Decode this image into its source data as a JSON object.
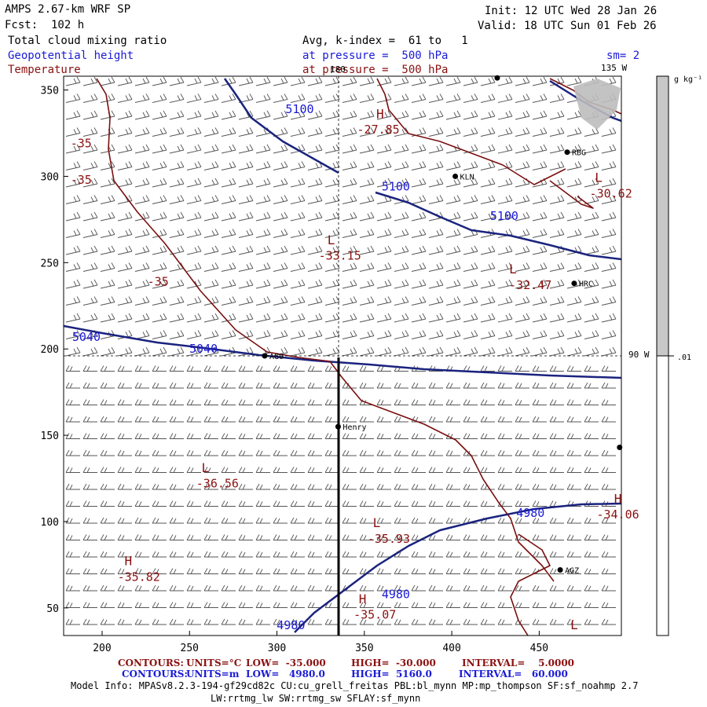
{
  "header": {
    "model_title": "AMPS 2.67-km WRF SP",
    "forecast": "Fcst:  102 h",
    "init": "Init: 12 UTC Wed 28 Jan 26",
    "valid": "Valid: 18 UTC Sun 01 Feb 26",
    "field1": "Total cloud mixing ratio",
    "field1_detail": "Avg, k-index =  61 to   1",
    "field2": "Geopotential height",
    "field2_detail": "at pressure =  500 hPa",
    "field3": "Temperature",
    "field3_detail": "at pressure =  500 hPa",
    "smoothing": "sm= 2",
    "lon_135": "135 W",
    "lon_90": "90 W",
    "lon_180": "180"
  },
  "colorbar": {
    "unit": "g kg⁻¹",
    "tick_value": ".01",
    "color_high": "#c8c8c8",
    "color_low": "#ffffff"
  },
  "axes": {
    "x_ticks": [
      "200",
      "250",
      "300",
      "350",
      "400",
      "450"
    ],
    "y_ticks": [
      "350",
      "300",
      "250",
      "200",
      "150",
      "100",
      "50"
    ],
    "xlim": [
      178,
      497
    ],
    "ylim": [
      34,
      358
    ]
  },
  "stations": [
    {
      "name": "RBG",
      "x": 466,
      "y": 314
    },
    {
      "name": "KLN",
      "x": 402,
      "y": 300
    },
    {
      "name": "HRC",
      "x": 470,
      "y": 238
    },
    {
      "name": "AGO",
      "x": 293,
      "y": 196
    },
    {
      "name": "Henry",
      "x": 335,
      "y": 155
    },
    {
      "name": "AGZ",
      "x": 462,
      "y": 72
    },
    {
      "name": "",
      "x": 426,
      "y": 357
    },
    {
      "name": "",
      "x": 496,
      "y": 143
    }
  ],
  "height_labels": [
    {
      "text": "5100",
      "x": 313,
      "y": 339
    },
    {
      "text": "5100",
      "x": 368,
      "y": 294
    },
    {
      "text": "5100",
      "x": 430,
      "y": 277
    },
    {
      "text": "5040",
      "x": 191,
      "y": 207
    },
    {
      "text": "5040",
      "x": 258,
      "y": 200
    },
    {
      "text": "4980",
      "x": 445,
      "y": 105
    },
    {
      "text": "4980",
      "x": 368,
      "y": 58
    },
    {
      "text": "4980",
      "x": 308,
      "y": 40
    }
  ],
  "temp_labels": [
    {
      "text": "-35",
      "x": 188,
      "y": 319
    },
    {
      "text": "-35",
      "x": 188,
      "y": 298
    },
    {
      "text": "-35",
      "x": 232,
      "y": 239
    },
    {
      "text": "H",
      "x": 359,
      "y": 336
    },
    {
      "text": "-27.85",
      "x": 358,
      "y": 327
    },
    {
      "text": "L",
      "x": 484,
      "y": 299
    },
    {
      "text": "-30.62",
      "x": 491,
      "y": 290
    },
    {
      "text": "L",
      "x": 331,
      "y": 263
    },
    {
      "text": "-33.15",
      "x": 336,
      "y": 254
    },
    {
      "text": "L",
      "x": 435,
      "y": 246
    },
    {
      "text": "-32.47",
      "x": 445,
      "y": 237
    },
    {
      "text": "L",
      "x": 259,
      "y": 131
    },
    {
      "text": "-36.56",
      "x": 266,
      "y": 122
    },
    {
      "text": "H",
      "x": 495,
      "y": 113
    },
    {
      "text": "-34.06",
      "x": 495,
      "y": 104
    },
    {
      "text": "L",
      "x": 357,
      "y": 99
    },
    {
      "text": "-35.93",
      "x": 364,
      "y": 90
    },
    {
      "text": "H",
      "x": 215,
      "y": 77
    },
    {
      "text": "-35.82",
      "x": 221,
      "y": 68
    },
    {
      "text": "H",
      "x": 349,
      "y": 55
    },
    {
      "text": "-35.07",
      "x": 356,
      "y": 46
    },
    {
      "text": "L",
      "x": 470,
      "y": 40
    }
  ],
  "footer": {
    "red_label": "CONTOURS:",
    "red_units": "UNITS=°C",
    "red_low": "LOW=  -35.000",
    "red_high": "HIGH=  -30.000",
    "red_interval": "INTERVAL=    5.0000",
    "blue_label": "CONTOURS:",
    "blue_units": "UNITS=m",
    "blue_low": "LOW=   4980.0",
    "blue_high": "HIGH=  5160.0",
    "blue_interval": "INTERVAL=   60.000",
    "model_info": "Model Info: MPASv8.2.3-194-gf29cd82c CU:cu_grell_freitas PBL:bl_mynn MP:mp_thompson SF:sf_noahmp 2.7",
    "model_info2": "LW:rrtmg_lw SW:rrtmg_sw SFLAY:sf_mynn"
  },
  "colors": {
    "height_contour": "#1a237e",
    "temp_contour": "#7a1010",
    "label_blue": "#1a1ad6",
    "label_red": "#8b1010"
  }
}
